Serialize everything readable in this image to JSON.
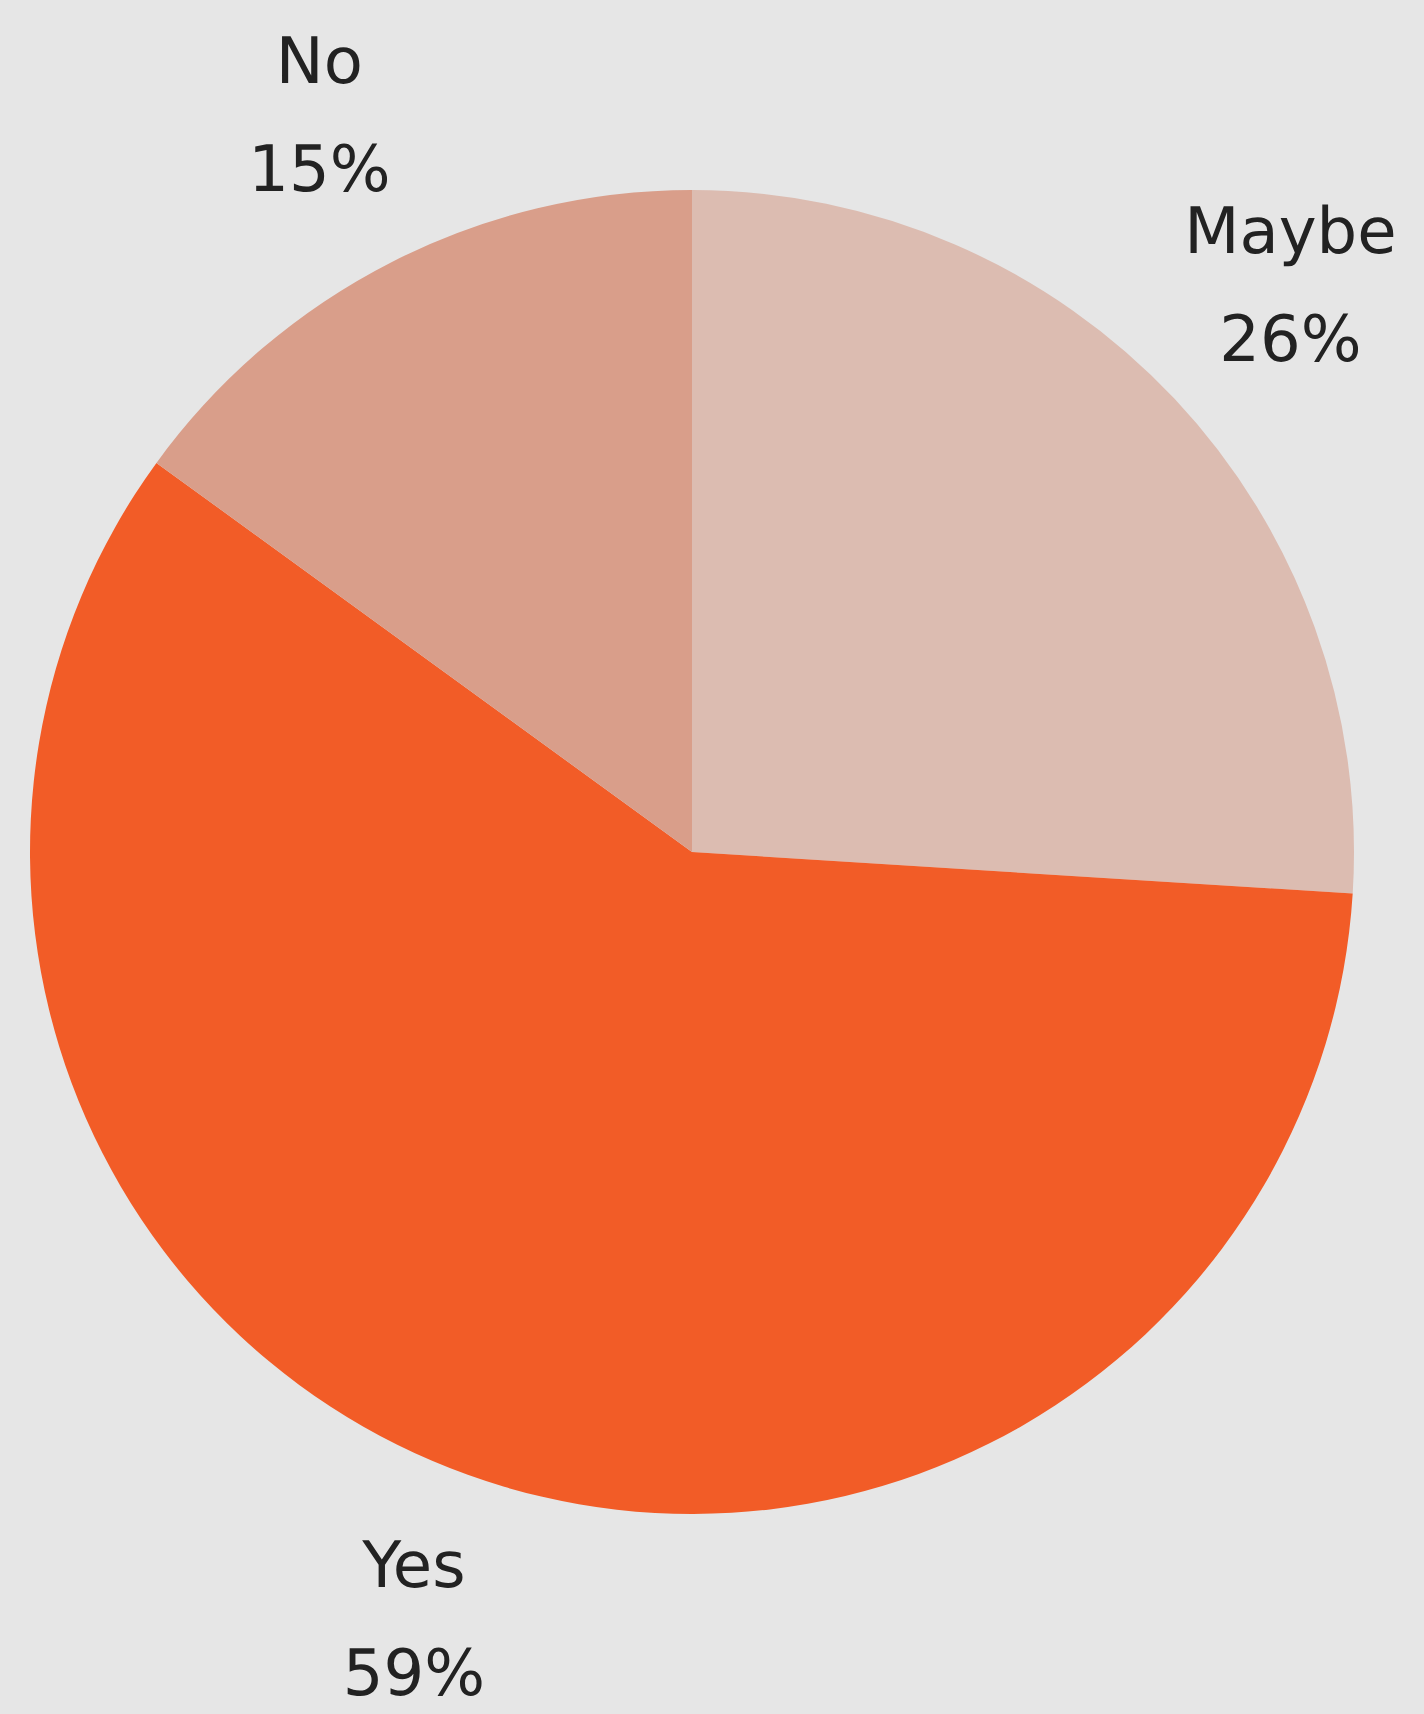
{
  "chart_data": {
    "type": "pie",
    "categories": [
      "Maybe",
      "Yes",
      "No"
    ],
    "values": [
      26,
      59,
      15
    ],
    "colors": [
      "#dcbcb1",
      "#f25c27",
      "#d99e8a"
    ],
    "value_labels": [
      "26%",
      "59%",
      "15%"
    ]
  }
}
